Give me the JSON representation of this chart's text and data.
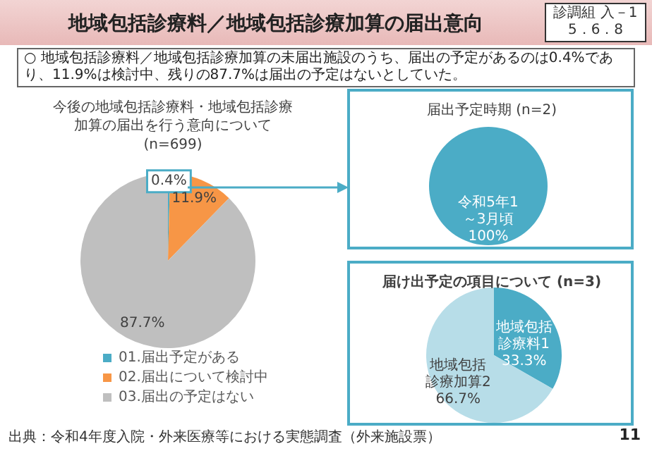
{
  "chart_data": [
    {
      "type": "pie",
      "title": "今後の地域包括診療料・地域包括診療加算の届出を行う意向について",
      "subtitle": "(n=699)",
      "categories": [
        "01.届出予定がある",
        "02.届出について検討中",
        "03.届出の予定はない"
      ],
      "values": [
        0.4,
        11.9,
        87.7
      ],
      "colors": [
        "#4bacc6",
        "#f79646",
        "#bfbfbf"
      ],
      "value_labels": [
        "0.4%",
        "11.9%",
        "87.7%"
      ],
      "legend": "bottom",
      "annotations": [
        "地域包括診療料／地域包括診療加算の届出意向",
        "診調組 入－1",
        "5．6．8",
        "○ 地域包括診療料／地域包括診療加算の未届出施設のうち、届出の予定があるのは0.4%であり、11.9%は検討中、残りの87.7%は届出の予定はないとしていた。",
        "出典：令和4年度入院・外来医療等における実態調査（外来施設票）",
        "11"
      ]
    },
    {
      "type": "pie",
      "title": "届出予定時期 (n=2)",
      "categories": [
        "令和5年1～3月頃"
      ],
      "values": [
        100
      ],
      "colors": [
        "#4bacc6"
      ],
      "value_labels": [
        "100%"
      ]
    },
    {
      "type": "pie",
      "title": "届け出予定の項目について (n=3)",
      "categories": [
        "地域包括診療料1",
        "地域包括診療加算2"
      ],
      "values": [
        33.3,
        66.7
      ],
      "colors": [
        "#4bacc6",
        "#b7dde8"
      ],
      "value_labels": [
        "33.3%",
        "66.7%"
      ]
    }
  ]
}
